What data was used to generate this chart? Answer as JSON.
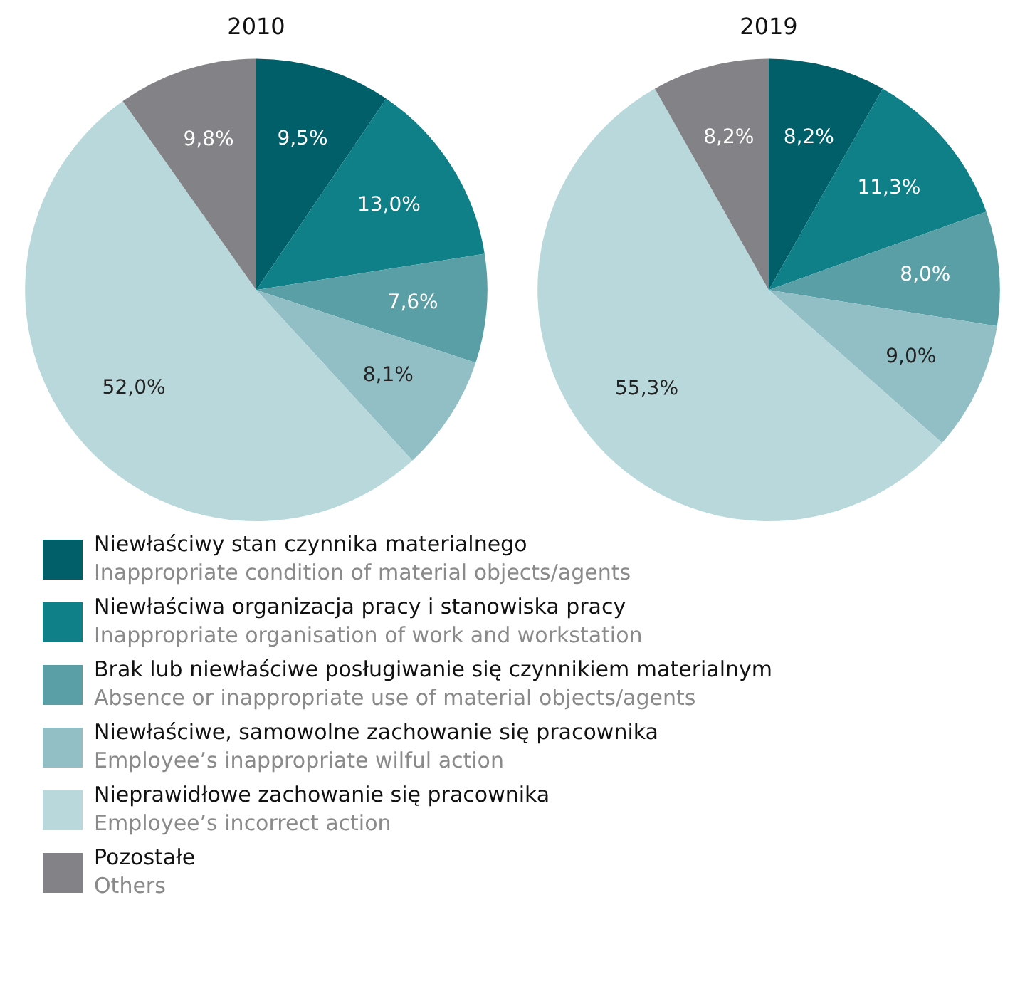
{
  "chart_data": [
    {
      "type": "pie",
      "title": "2010",
      "categories": [
        "Niewłaściwy stan czynnika materialnego\nInappropriate condition of material objects/agents",
        "Niewłaściwa organizacja pracy i stanowiska pracy\nInappropriate organisation of work and workstation",
        "Brak lub niewłaściwe posługiwanie się czynnikiem materialnym\nAbsence or inappropriate use of material objects/agents",
        "Niewłaściwe, samowolne zachowanie się pracownika\nEmployee’s inappropriate wilful action",
        "Nieprawidłowe zachowanie się pracownika\nEmployee’s incorrect action",
        "Pozostałe\nOthers"
      ],
      "values": [
        9.5,
        13.0,
        7.6,
        8.1,
        52.0,
        9.8
      ],
      "colors": [
        "#005f69",
        "#0f7f88",
        "#5a9fa6",
        "#92bfc5",
        "#b8d8dc",
        "#838387"
      ],
      "value_labels": [
        "9,5%",
        "13,0%",
        "7,6%",
        "8,1%",
        "52,0%",
        "9,8%"
      ],
      "legend": "bottom"
    },
    {
      "type": "pie",
      "title": "2019",
      "categories": [
        null,
        null,
        null,
        null,
        null,
        null
      ],
      "values": [
        8.2,
        11.3,
        8.0,
        9.0,
        55.3,
        8.2
      ],
      "colors": [
        "#005f69",
        "#0f7f88",
        "#5a9fa6",
        "#92bfc5",
        "#b8d8dc",
        "#838387"
      ],
      "value_labels": [
        "8,2%",
        "11,3%",
        "8,0%",
        "9,0%",
        "55,3%",
        "8,2%"
      ]
    }
  ]
}
